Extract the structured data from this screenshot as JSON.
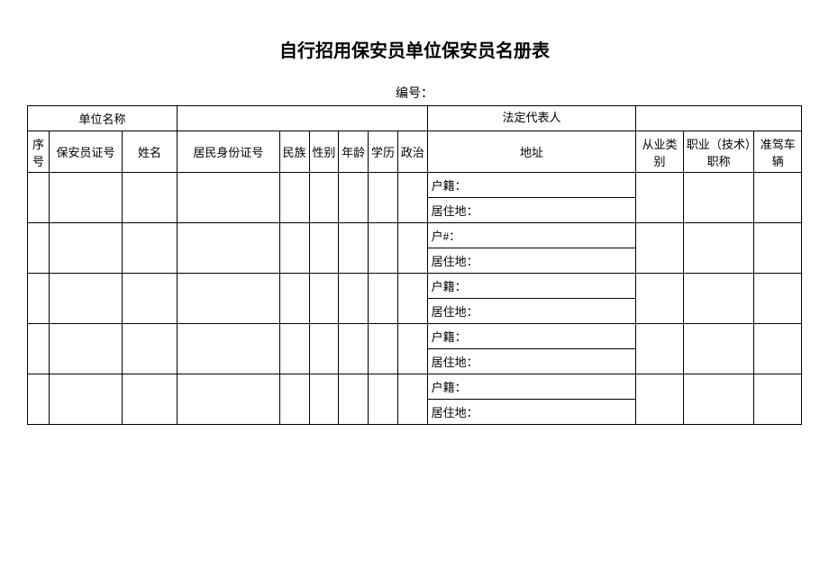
{
  "title": "自行招用保安员单位保安员名册表",
  "serial_label": "编号：",
  "header_row1": {
    "unit_name": "单位名称",
    "legal_rep": "法定代表人"
  },
  "header_row2": {
    "seq": "序号",
    "cert": "保安员证号",
    "name": "姓名",
    "id": "居民身份证号",
    "nation": "民族",
    "gender": "性别",
    "age": "年龄",
    "edu": "学历",
    "pol": "政治",
    "addr": "地址",
    "emp": "从业类别",
    "prof": "职业（技术）职称",
    "drive": "准驾车辆"
  },
  "rows": [
    {
      "huji": "户籍：",
      "juzhu": "居住地："
    },
    {
      "huji": "户#：",
      "juzhu": "居住地："
    },
    {
      "huji": "户籍：",
      "juzhu": "居住地："
    },
    {
      "huji": "户籍：",
      "juzhu": "居住地："
    },
    {
      "huji": "户籍：",
      "juzhu": "居住地："
    }
  ],
  "colors": {
    "border": "#000000",
    "background": "#ffffff",
    "text": "#000000"
  }
}
